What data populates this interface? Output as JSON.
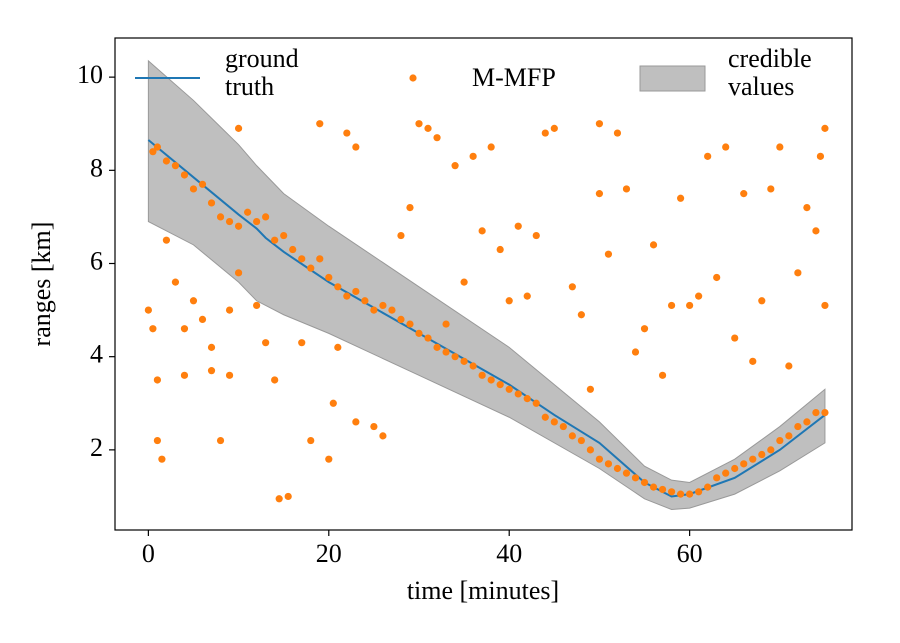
{
  "chart_data": {
    "type": "line",
    "xlabel": "time [minutes]",
    "ylabel": "ranges [km]",
    "xlim": [
      -3.7,
      78.0
    ],
    "ylim": [
      0.28,
      10.84
    ],
    "xticks": [
      0,
      20,
      40,
      60
    ],
    "yticks": [
      2,
      4,
      6,
      8,
      10
    ],
    "grid": false,
    "legend": "top",
    "series": [
      {
        "name": "ground truth",
        "type": "line",
        "color": "#1f77b4",
        "x": [
          0,
          5,
          10,
          12,
          13,
          15,
          20,
          25,
          30,
          35,
          40,
          45,
          50,
          55,
          58,
          60,
          65,
          70,
          75
        ],
        "values": [
          8.65,
          7.85,
          7.05,
          6.75,
          6.55,
          6.25,
          5.6,
          5.05,
          4.5,
          3.95,
          3.4,
          2.75,
          2.15,
          1.3,
          1.0,
          1.05,
          1.4,
          2.0,
          2.75
        ]
      },
      {
        "name": "M-MFP",
        "type": "scatter",
        "color": "#ff7f0e",
        "x": [
          0.5,
          1,
          2,
          3,
          4,
          5,
          6,
          7,
          8,
          9,
          10,
          11,
          12,
          13,
          14,
          15,
          16,
          17,
          18,
          19,
          20,
          21,
          22,
          23,
          24,
          25,
          26,
          27,
          28,
          29,
          30,
          31,
          32,
          33,
          34,
          35,
          36,
          37,
          38,
          39,
          40,
          41,
          42,
          43,
          44,
          45,
          46,
          47,
          48,
          49,
          50,
          51,
          52,
          53,
          54,
          55,
          56,
          57,
          58,
          59,
          60,
          61,
          62,
          63,
          64,
          65,
          66,
          67,
          68,
          69,
          70,
          71,
          72,
          73,
          74,
          75,
          0,
          0.5,
          1,
          1,
          1.5,
          2,
          3,
          4,
          4,
          5,
          6,
          7,
          7,
          8,
          9,
          9,
          10,
          10,
          12,
          13,
          14,
          14.5,
          15.5,
          17,
          18,
          19,
          20,
          20.5,
          21,
          22,
          23,
          23,
          25,
          26,
          28,
          29,
          30,
          31,
          32,
          33,
          34,
          35,
          36,
          37,
          38,
          39,
          40,
          41,
          42,
          43,
          44,
          45,
          47,
          48,
          49,
          50,
          50,
          51,
          52,
          53,
          54,
          55,
          56,
          57,
          58,
          59,
          60,
          61,
          62,
          63,
          64,
          65,
          66,
          67,
          68,
          69,
          70,
          71,
          72,
          73,
          74,
          74.5,
          75,
          75
        ],
        "values": [
          8.4,
          8.5,
          8.2,
          8.1,
          7.9,
          7.6,
          7.7,
          7.3,
          7.0,
          6.9,
          6.8,
          7.1,
          6.9,
          7.0,
          6.5,
          6.6,
          6.3,
          6.1,
          5.9,
          6.1,
          5.7,
          5.5,
          5.3,
          5.4,
          5.2,
          5.0,
          5.1,
          5.0,
          4.8,
          4.7,
          4.5,
          4.4,
          4.2,
          4.1,
          4.0,
          3.9,
          3.8,
          3.6,
          3.5,
          3.4,
          3.3,
          3.2,
          3.1,
          3.0,
          2.7,
          2.6,
          2.5,
          2.3,
          2.2,
          2.0,
          1.8,
          1.7,
          1.6,
          1.5,
          1.4,
          1.3,
          1.2,
          1.15,
          1.1,
          1.05,
          1.05,
          1.1,
          1.2,
          1.4,
          1.5,
          1.6,
          1.7,
          1.8,
          1.9,
          2.0,
          2.2,
          2.3,
          2.5,
          2.6,
          2.8,
          2.8,
          5.0,
          4.6,
          3.5,
          2.2,
          1.8,
          6.5,
          5.6,
          4.6,
          3.6,
          5.2,
          4.8,
          4.2,
          3.7,
          2.2,
          3.6,
          5.0,
          5.8,
          8.9,
          5.1,
          4.3,
          3.5,
          0.95,
          1.0,
          4.3,
          2.2,
          9.0,
          1.8,
          3.0,
          4.2,
          8.8,
          8.5,
          2.6,
          2.5,
          2.3,
          6.6,
          7.2,
          9.0,
          8.9,
          8.7,
          4.7,
          8.1,
          5.6,
          8.3,
          6.7,
          8.5,
          6.3,
          5.2,
          6.8,
          5.3,
          6.6,
          8.8,
          8.9,
          5.5,
          4.9,
          3.3,
          9.0,
          7.5,
          6.2,
          8.8,
          7.6,
          4.1,
          4.6,
          6.4,
          3.6,
          5.1,
          7.4,
          5.1,
          5.3,
          8.3,
          5.7,
          8.5,
          4.4,
          7.5,
          3.9,
          5.2,
          7.6,
          8.5,
          3.8,
          5.8,
          7.2,
          6.7,
          8.3,
          5.1,
          8.9
        ]
      },
      {
        "name": "credible values",
        "type": "band",
        "color": "#bfbfbf",
        "x": [
          0,
          5,
          10,
          12,
          15,
          20,
          30,
          40,
          50,
          55,
          58,
          60,
          65,
          70,
          75
        ],
        "upper": [
          10.35,
          9.5,
          8.55,
          8.1,
          7.5,
          6.8,
          5.5,
          4.2,
          2.6,
          1.65,
          1.35,
          1.3,
          1.8,
          2.5,
          3.3
        ],
        "lower": [
          6.9,
          6.4,
          5.6,
          5.2,
          4.9,
          4.5,
          3.6,
          2.7,
          1.6,
          0.95,
          0.72,
          0.75,
          1.05,
          1.55,
          2.15
        ]
      }
    ]
  }
}
